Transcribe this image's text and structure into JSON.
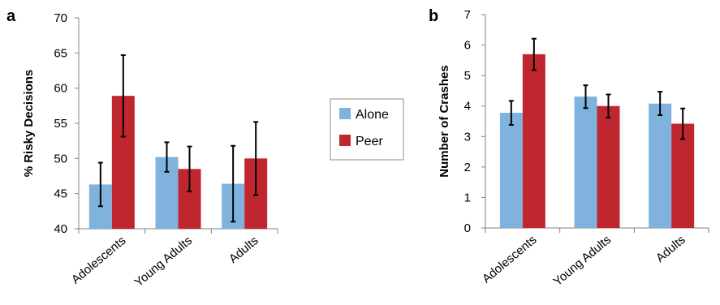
{
  "colors": {
    "alone": "#7fb3dd",
    "peer": "#c0262d",
    "axis": "#808080",
    "error": "#000000"
  },
  "legend": {
    "items": [
      {
        "label": "Alone",
        "color_key": "alone"
      },
      {
        "label": "Peer",
        "color_key": "peer"
      }
    ]
  },
  "chart_data": [
    {
      "type": "bar",
      "panel_label": "a",
      "title": "",
      "xlabel": "",
      "ylabel": "% Risky Decisions",
      "ylim": [
        40,
        70
      ],
      "yticks": [
        40,
        45,
        50,
        55,
        60,
        65,
        70
      ],
      "categories": [
        "Adolescents",
        "Young Adults",
        "Adults"
      ],
      "series": [
        {
          "name": "Alone",
          "values": [
            46.3,
            50.2,
            46.4
          ],
          "err_low": [
            43.2,
            48.1,
            41.0
          ],
          "err_high": [
            49.4,
            52.3,
            51.8
          ]
        },
        {
          "name": "Peer",
          "values": [
            58.9,
            48.5,
            50.0
          ],
          "err_low": [
            53.1,
            45.3,
            44.8
          ],
          "err_high": [
            64.7,
            51.7,
            55.2
          ]
        }
      ],
      "grid": false
    },
    {
      "type": "bar",
      "panel_label": "b",
      "title": "",
      "xlabel": "",
      "ylabel": "Number of Crashes",
      "ylim": [
        0,
        7
      ],
      "yticks": [
        0,
        1,
        2,
        3,
        4,
        5,
        6,
        7
      ],
      "categories": [
        "Adolescents",
        "Young Adults",
        "Adults"
      ],
      "series": [
        {
          "name": "Alone",
          "values": [
            3.78,
            4.31,
            4.08
          ],
          "err_low": [
            3.38,
            3.93,
            3.7
          ],
          "err_high": [
            4.17,
            4.68,
            4.47
          ]
        },
        {
          "name": "Peer",
          "values": [
            5.7,
            4.0,
            3.42
          ],
          "err_low": [
            5.18,
            3.62,
            2.92
          ],
          "err_high": [
            6.21,
            4.38,
            3.92
          ]
        }
      ],
      "grid": false
    }
  ]
}
